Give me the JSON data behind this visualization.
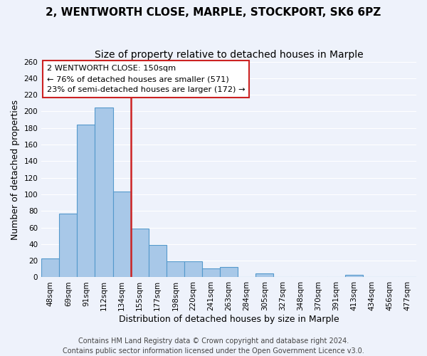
{
  "title": "2, WENTWORTH CLOSE, MARPLE, STOCKPORT, SK6 6PZ",
  "subtitle": "Size of property relative to detached houses in Marple",
  "xlabel": "Distribution of detached houses by size in Marple",
  "ylabel": "Number of detached properties",
  "bar_labels": [
    "48sqm",
    "69sqm",
    "91sqm",
    "112sqm",
    "134sqm",
    "155sqm",
    "177sqm",
    "198sqm",
    "220sqm",
    "241sqm",
    "263sqm",
    "284sqm",
    "305sqm",
    "327sqm",
    "348sqm",
    "370sqm",
    "391sqm",
    "413sqm",
    "434sqm",
    "456sqm",
    "477sqm"
  ],
  "bar_values": [
    23,
    77,
    184,
    205,
    103,
    59,
    39,
    19,
    19,
    11,
    12,
    0,
    5,
    0,
    0,
    0,
    0,
    3,
    0,
    0,
    0
  ],
  "bar_color": "#a8c8e8",
  "bar_edge_color": "#5599cc",
  "highlight_color": "#cc2222",
  "ylim": [
    0,
    260
  ],
  "yticks": [
    0,
    20,
    40,
    60,
    80,
    100,
    120,
    140,
    160,
    180,
    200,
    220,
    240,
    260
  ],
  "annotation_title": "2 WENTWORTH CLOSE: 150sqm",
  "annotation_line1": "← 76% of detached houses are smaller (571)",
  "annotation_line2": "23% of semi-detached houses are larger (172) →",
  "vline_x_index": 4.5,
  "footer1": "Contains HM Land Registry data © Crown copyright and database right 2024.",
  "footer2": "Contains public sector information licensed under the Open Government Licence v3.0.",
  "background_color": "#eef2fb",
  "grid_color": "#ffffff",
  "title_fontsize": 11,
  "subtitle_fontsize": 10,
  "axis_label_fontsize": 9,
  "tick_fontsize": 7.5,
  "footer_fontsize": 7
}
